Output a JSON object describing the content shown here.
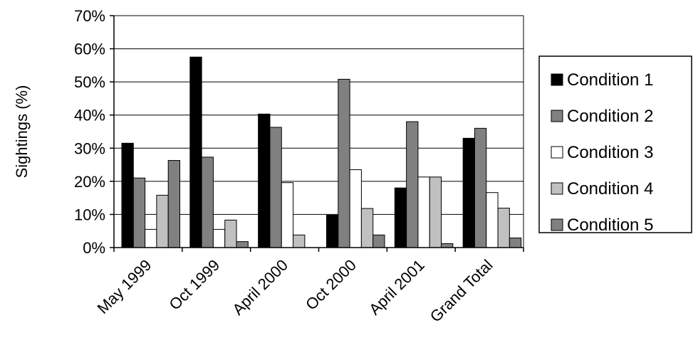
{
  "chart_data": {
    "type": "bar",
    "title": "",
    "xlabel": "",
    "ylabel": "Sightings (%)",
    "ylim": [
      0,
      70
    ],
    "y_tick_values": [
      0,
      10,
      20,
      30,
      40,
      50,
      60,
      70
    ],
    "y_tick_labels": [
      "0%",
      "10%",
      "20%",
      "30%",
      "40%",
      "50%",
      "60%",
      "70%"
    ],
    "grid": "horizontal major gridlines",
    "legend_position": "right",
    "categories": [
      "May 1999",
      "Oct 1999",
      "April 2000",
      "Oct 2000",
      "April 2001",
      "Grand Total"
    ],
    "series": [
      {
        "name": "Condition 1",
        "color": "#000000",
        "values": [
          31.5,
          57.5,
          40.3,
          9.8,
          18.0,
          33.0
        ]
      },
      {
        "name": "Condition 2",
        "color": "#808080",
        "values": [
          21.0,
          27.3,
          36.3,
          50.8,
          38.0,
          36.0
        ]
      },
      {
        "name": "Condition 3",
        "color": "#ffffff",
        "values": [
          5.5,
          5.5,
          19.6,
          23.5,
          21.3,
          16.6
        ]
      },
      {
        "name": "Condition 4",
        "color": "#c0c0c0",
        "values": [
          15.8,
          8.3,
          3.8,
          11.8,
          21.3,
          11.9
        ]
      },
      {
        "name": "Condition 5",
        "color": "#808080",
        "values": [
          26.3,
          1.8,
          0.0,
          3.8,
          1.2,
          2.9
        ]
      }
    ]
  }
}
